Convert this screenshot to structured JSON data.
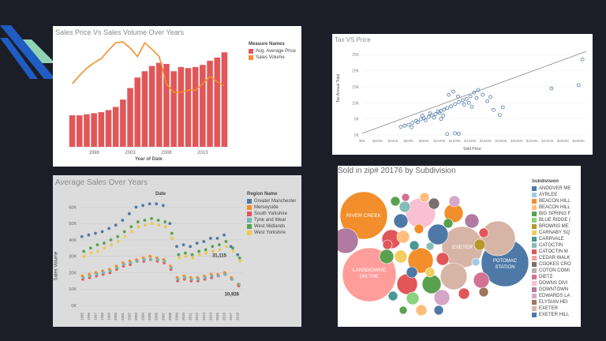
{
  "chart_data": [
    {
      "type": "bar",
      "title": "Sales Price Vs Sales Volume Over Years",
      "xlabel": "Year of Date",
      "x_ticks": [
        "1998",
        "2003",
        "2008",
        "2013"
      ],
      "categories": [
        "1995",
        "1996",
        "1997",
        "1998",
        "1999",
        "2000",
        "2001",
        "2002",
        "2003",
        "2004",
        "2005",
        "2006",
        "2007",
        "2008",
        "2009",
        "2010",
        "2011",
        "2012",
        "2013",
        "2014",
        "2015",
        "2016"
      ],
      "series": [
        {
          "name": "Avg. Average Price",
          "type": "bar",
          "color": "#e15759",
          "values": [
            0.3,
            0.3,
            0.31,
            0.32,
            0.33,
            0.35,
            0.38,
            0.45,
            0.56,
            0.66,
            0.72,
            0.77,
            0.8,
            0.79,
            0.72,
            0.76,
            0.75,
            0.76,
            0.78,
            0.82,
            0.85,
            0.9
          ]
        },
        {
          "name": "Sales Volume",
          "type": "line",
          "color": "#f28e2b",
          "values": [
            0.6,
            0.68,
            0.75,
            0.8,
            0.84,
            0.92,
            0.99,
            1.0,
            0.94,
            0.86,
            0.99,
            0.93,
            0.86,
            0.6,
            0.52,
            0.52,
            0.54,
            0.54,
            0.6,
            0.67,
            0.62,
            0.58
          ]
        }
      ],
      "legend_title": "Measure Names",
      "legend_position": "right"
    },
    {
      "type": "scatter",
      "title": "Tax VS Price",
      "xlabel": "Sold Price",
      "ylabel": "Tax Annual Total",
      "x_ticks": [
        "$0K",
        "$200K",
        "$400K",
        "$600K",
        "$800K",
        "$1000K",
        "$1200K",
        "$1400K",
        "$1600K",
        "$1800K",
        "$2000K",
        "$2200K",
        "$2400K",
        "$2600K",
        "$2800K"
      ],
      "y_ticks": [
        "0K",
        "5K",
        "10K",
        "15K",
        "20K",
        "25K"
      ],
      "xlim": [
        0,
        2900
      ],
      "ylim": [
        0,
        27
      ],
      "trend_line": [
        [
          0,
          0.5
        ],
        [
          2900,
          26
        ]
      ],
      "points": [
        [
          600,
          3.2
        ],
        [
          650,
          3.8
        ],
        [
          700,
          4.4
        ],
        [
          720,
          4.0
        ],
        [
          760,
          4.9
        ],
        [
          800,
          5.2
        ],
        [
          820,
          4.6
        ],
        [
          860,
          5.6
        ],
        [
          900,
          6.1
        ],
        [
          950,
          6.5
        ],
        [
          1000,
          6.9
        ],
        [
          1020,
          7.5
        ],
        [
          1060,
          7.9
        ],
        [
          1100,
          8.4
        ],
        [
          1150,
          8.9
        ],
        [
          1200,
          9.6
        ],
        [
          1250,
          10.2
        ],
        [
          1300,
          10.8
        ],
        [
          1350,
          11.2
        ],
        [
          1400,
          12.0
        ],
        [
          1450,
          13.2
        ],
        [
          1500,
          14.0
        ],
        [
          1120,
          12.5
        ],
        [
          1180,
          13.5
        ],
        [
          1240,
          12.0
        ],
        [
          1320,
          9.5
        ],
        [
          1020,
          5.0
        ],
        [
          1100,
          0.3
        ],
        [
          1200,
          0.5
        ],
        [
          1250,
          0.4
        ],
        [
          1700,
          7.8
        ],
        [
          1780,
          6.2
        ],
        [
          1820,
          8.6
        ],
        [
          2450,
          14.5
        ],
        [
          2800,
          15.5
        ],
        [
          2850,
          23.5
        ],
        [
          500,
          2.5
        ],
        [
          550,
          2.9
        ],
        [
          640,
          2.4
        ],
        [
          780,
          6.0
        ],
        [
          880,
          6.7
        ],
        [
          930,
          5.4
        ],
        [
          980,
          7.3
        ],
        [
          1050,
          6.0
        ],
        [
          1380,
          10.0
        ],
        [
          1420,
          8.8
        ],
        [
          1480,
          11.5
        ],
        [
          1560,
          12.5
        ],
        [
          1620,
          10.5
        ],
        [
          1660,
          11.8
        ]
      ]
    },
    {
      "type": "scatter",
      "title": "Average Sales Over Years",
      "xlabel": "Date",
      "ylabel": "Sales Volume",
      "y_ticks": [
        "0K",
        "10K",
        "20K",
        "30K",
        "40K",
        "50K",
        "60K"
      ],
      "x_ticks": [
        "1995",
        "1996",
        "1997",
        "1998",
        "1999",
        "2000",
        "2001",
        "2002",
        "2003",
        "2004",
        "2005",
        "2006",
        "2007",
        "2008",
        "2009",
        "2010",
        "2011",
        "2012",
        "2013",
        "2014",
        "2015",
        "2016",
        "2017",
        "2018"
      ],
      "ylim": [
        0,
        65
      ],
      "annotations": [
        "31,115",
        "10,926"
      ],
      "legend_title": "Region Name",
      "legend_position": "right",
      "series": [
        {
          "name": "Greater Manchester",
          "color": "#4e79a7",
          "values": [
            42,
            43,
            44,
            45,
            47,
            49,
            52,
            56,
            60,
            61,
            62,
            62,
            61,
            50,
            36,
            37,
            36,
            38,
            39,
            41,
            41,
            43,
            36,
            31
          ]
        },
        {
          "name": "Merseyside",
          "color": "#f28e2b",
          "values": [
            18,
            19,
            20,
            21,
            22,
            24,
            26,
            27,
            28,
            29,
            30,
            29,
            28,
            24,
            17,
            18,
            17,
            17,
            18,
            19,
            19,
            20,
            17,
            13
          ]
        },
        {
          "name": "South Yorkshire",
          "color": "#e15759",
          "values": [
            16,
            17,
            18,
            19,
            20,
            22,
            24,
            25,
            27,
            27,
            28,
            27,
            26,
            22,
            15,
            16,
            15,
            15,
            16,
            17,
            18,
            19,
            16,
            12
          ]
        },
        {
          "name": "Tyne and Wear",
          "color": "#76b7b2",
          "values": [
            17,
            18,
            19,
            20,
            21,
            23,
            25,
            26,
            27,
            28,
            28,
            28,
            27,
            23,
            16,
            17,
            16,
            16,
            17,
            18,
            18,
            19,
            16,
            13
          ]
        },
        {
          "name": "West Midlands",
          "color": "#59a14f",
          "values": [
            33,
            35,
            37,
            38,
            40,
            42,
            45,
            48,
            51,
            52,
            53,
            52,
            51,
            44,
            31,
            32,
            31,
            33,
            34,
            36,
            37,
            39,
            35,
            29
          ]
        },
        {
          "name": "West Yorkshire",
          "color": "#edc948",
          "values": [
            30,
            32,
            33,
            35,
            37,
            39,
            42,
            45,
            48,
            49,
            50,
            49,
            48,
            41,
            29,
            30,
            29,
            31,
            32,
            33,
            34,
            36,
            33,
            27
          ]
        }
      ]
    },
    {
      "type": "bubble",
      "title": "Sold in zip# 20176 by Subdivision",
      "legend_title": "Subdivision",
      "legend_position": "right",
      "bubble_labels": [
        "RIVER CREEK",
        "LANSDOWNE ON THE",
        "EXETER",
        "POTOMAC STATION"
      ],
      "legend_items": [
        {
          "label": "ANDOVER ME",
          "color": "#4e79a7"
        },
        {
          "label": "AYRLEE",
          "color": "#a0cbe8"
        },
        {
          "label": "BEACON HILL",
          "color": "#f28e2b"
        },
        {
          "label": "BEACON HILL",
          "color": "#ffbe7d"
        },
        {
          "label": "BIG SPRING F",
          "color": "#59a14f"
        },
        {
          "label": "BLUE RIDGE (",
          "color": "#8cd17d"
        },
        {
          "label": "BROWNS ME",
          "color": "#b6992d"
        },
        {
          "label": "CARNABY SQ",
          "color": "#f1ce63"
        },
        {
          "label": "CARRVALE",
          "color": "#499894"
        },
        {
          "label": "CATOCTIN",
          "color": "#86bcb6"
        },
        {
          "label": "CATOCTIN M",
          "color": "#e15759"
        },
        {
          "label": "CEDAR WALK",
          "color": "#ff9d9a"
        },
        {
          "label": "COOKES CRO",
          "color": "#79706e"
        },
        {
          "label": "COTON COMI",
          "color": "#bab0ac"
        },
        {
          "label": "DIETZ",
          "color": "#d37295"
        },
        {
          "label": "DOWNS DIVI",
          "color": "#fabfd2"
        },
        {
          "label": "DOWNTOWN",
          "color": "#b07aa1"
        },
        {
          "label": "EDWARDS LA",
          "color": "#d4a6c8"
        },
        {
          "label": "ELYSIAN HEI",
          "color": "#9d7660"
        },
        {
          "label": "EXETER",
          "color": "#d7b5a6"
        },
        {
          "label": "EXETER HILL",
          "color": "#4e79a7"
        }
      ]
    }
  ]
}
